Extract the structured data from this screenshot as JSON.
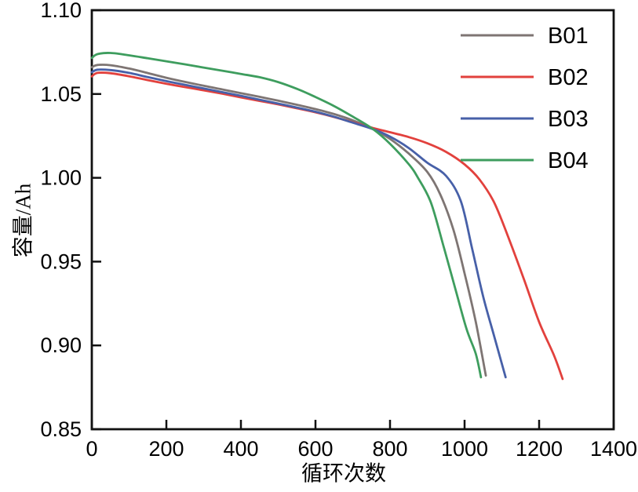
{
  "chart_data": {
    "type": "line",
    "title": "",
    "xlabel": "循环次数",
    "ylabel": "容量/Ah",
    "xlim": [
      0,
      1400
    ],
    "ylim": [
      0.85,
      1.1
    ],
    "x_ticks": [
      "0",
      "200",
      "400",
      "600",
      "800",
      "1000",
      "1200",
      "1400"
    ],
    "x_tick_values": [
      0,
      200,
      400,
      600,
      800,
      1000,
      1200,
      1400
    ],
    "y_ticks": [
      "0.85",
      "0.90",
      "0.95",
      "1.00",
      "1.05",
      "1.10"
    ],
    "y_tick_values": [
      0.85,
      0.9,
      0.95,
      1.0,
      1.05,
      1.1
    ],
    "grid": false,
    "legend_position": "upper right",
    "axis_color": "#111111",
    "text_color": "#000000",
    "crossing_point_note": "all four curves intersect near x=755, y=1.029",
    "series": [
      {
        "name": "B01",
        "color": "#7E7573",
        "points": [
          [
            0,
            1.066
          ],
          [
            15,
            1.0673
          ],
          [
            50,
            1.0672
          ],
          [
            100,
            1.0652
          ],
          [
            150,
            1.0625
          ],
          [
            200,
            1.0597
          ],
          [
            250,
            1.0572
          ],
          [
            300,
            1.0549
          ],
          [
            350,
            1.0527
          ],
          [
            400,
            1.0505
          ],
          [
            450,
            1.0483
          ],
          [
            500,
            1.046
          ],
          [
            550,
            1.0436
          ],
          [
            600,
            1.041
          ],
          [
            650,
            1.038
          ],
          [
            700,
            1.0343
          ],
          [
            755,
            1.029
          ],
          [
            800,
            1.0232
          ],
          [
            850,
            1.0145
          ],
          [
            900,
            1.0035
          ],
          [
            935,
            0.99
          ],
          [
            970,
            0.969
          ],
          [
            1000,
            0.943
          ],
          [
            1030,
            0.914
          ],
          [
            1057,
            0.882
          ]
        ]
      },
      {
        "name": "B02",
        "color": "#E2413D",
        "points": [
          [
            0,
            1.0605
          ],
          [
            15,
            1.0626
          ],
          [
            50,
            1.0624
          ],
          [
            100,
            1.0606
          ],
          [
            150,
            1.0583
          ],
          [
            200,
            1.0561
          ],
          [
            250,
            1.0541
          ],
          [
            300,
            1.0522
          ],
          [
            350,
            1.0502
          ],
          [
            400,
            1.048
          ],
          [
            450,
            1.0459
          ],
          [
            500,
            1.0438
          ],
          [
            550,
            1.0415
          ],
          [
            600,
            1.0391
          ],
          [
            650,
            1.0363
          ],
          [
            700,
            1.0331
          ],
          [
            755,
            1.0297
          ],
          [
            800,
            1.0272
          ],
          [
            850,
            1.0243
          ],
          [
            900,
            1.0206
          ],
          [
            950,
            1.0155
          ],
          [
            1000,
            1.008
          ],
          [
            1040,
            0.999
          ],
          [
            1080,
            0.985
          ],
          [
            1120,
            0.963
          ],
          [
            1160,
            0.939
          ],
          [
            1200,
            0.914
          ],
          [
            1240,
            0.894
          ],
          [
            1263,
            0.88
          ]
        ]
      },
      {
        "name": "B03",
        "color": "#4760A8",
        "points": [
          [
            0,
            1.063
          ],
          [
            15,
            1.0645
          ],
          [
            50,
            1.0643
          ],
          [
            100,
            1.0626
          ],
          [
            150,
            1.0601
          ],
          [
            200,
            1.0577
          ],
          [
            250,
            1.0555
          ],
          [
            300,
            1.0533
          ],
          [
            350,
            1.0511
          ],
          [
            400,
            1.0489
          ],
          [
            450,
            1.0466
          ],
          [
            500,
            1.0443
          ],
          [
            550,
            1.0419
          ],
          [
            600,
            1.0394
          ],
          [
            650,
            1.0364
          ],
          [
            700,
            1.0329
          ],
          [
            755,
            1.029
          ],
          [
            800,
            1.0246
          ],
          [
            850,
            1.0178
          ],
          [
            900,
            1.009
          ],
          [
            950,
            1.0012
          ],
          [
            990,
            0.986
          ],
          [
            1020,
            0.958
          ],
          [
            1050,
            0.929
          ],
          [
            1080,
            0.905
          ],
          [
            1110,
            0.881
          ]
        ]
      },
      {
        "name": "B04",
        "color": "#3E9D5E",
        "points": [
          [
            0,
            1.0715
          ],
          [
            15,
            1.0738
          ],
          [
            50,
            1.0745
          ],
          [
            100,
            1.0731
          ],
          [
            150,
            1.0713
          ],
          [
            200,
            1.0695
          ],
          [
            250,
            1.0677
          ],
          [
            300,
            1.0658
          ],
          [
            350,
            1.0639
          ],
          [
            400,
            1.062
          ],
          [
            450,
            1.06
          ],
          [
            500,
            1.0571
          ],
          [
            550,
            1.0531
          ],
          [
            600,
            1.0482
          ],
          [
            650,
            1.0428
          ],
          [
            700,
            1.0365
          ],
          [
            755,
            1.029
          ],
          [
            800,
            1.0203
          ],
          [
            850,
            1.0082
          ],
          [
            875,
            1.0
          ],
          [
            910,
            0.985
          ],
          [
            945,
            0.958
          ],
          [
            975,
            0.934
          ],
          [
            1005,
            0.91
          ],
          [
            1030,
            0.895
          ],
          [
            1044,
            0.881
          ]
        ]
      }
    ]
  }
}
